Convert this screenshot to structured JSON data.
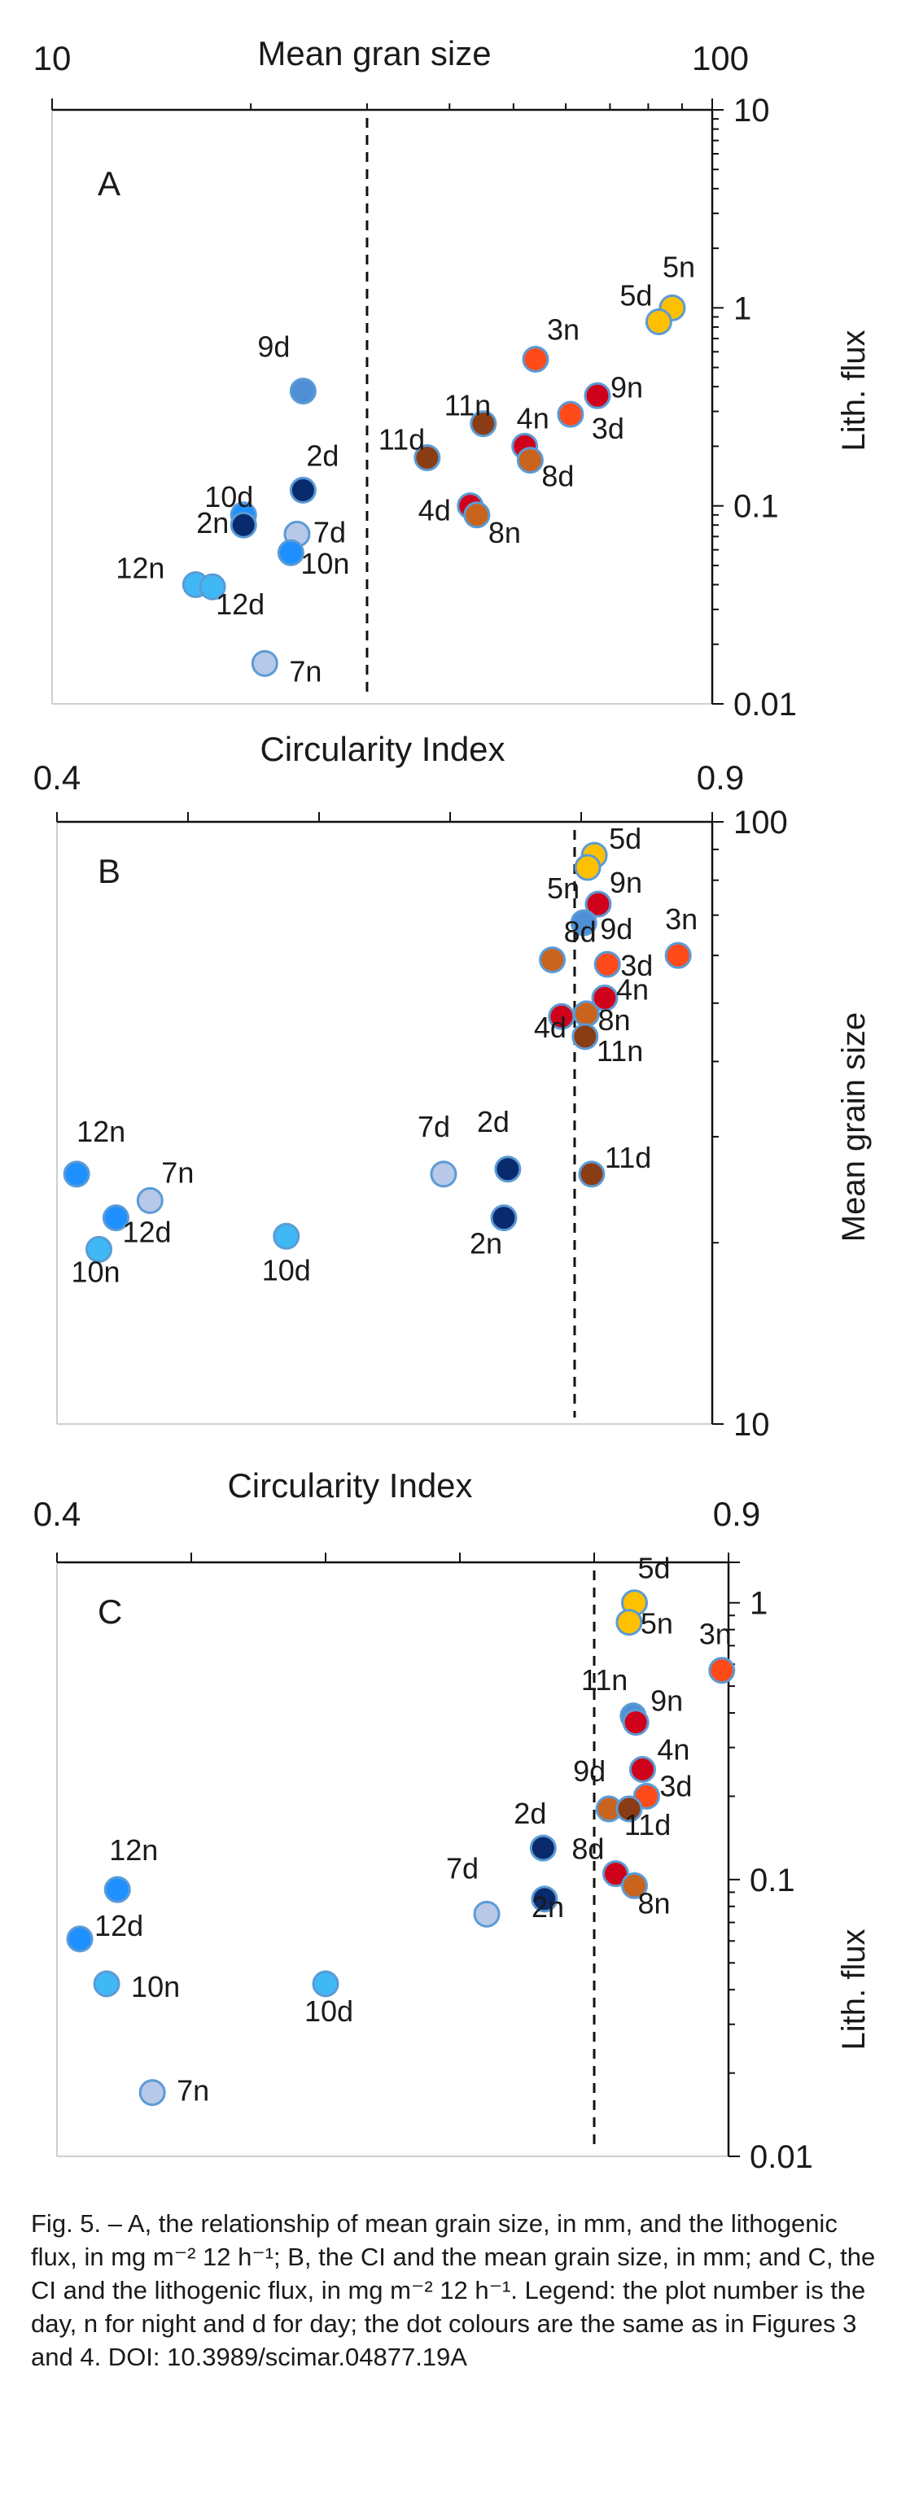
{
  "colors": {
    "light_blue": "#3fb8f5",
    "blue": "#1e90ff",
    "pale_blue": "#b8c8e8",
    "mid_blue": "#4f8fd6",
    "navy": "#0a2a6e",
    "yellow": "#ffc000",
    "red": "#d0021b",
    "orange_red": "#ff4a1a",
    "brown": "#8a3c14",
    "orange_brown": "#c8641e",
    "dot_outline": "#5b9bd5"
  },
  "chart_data": [
    {
      "panel": "A",
      "type": "scatter",
      "xlabel": "Mean gran size",
      "ylabel": "Lith. flux",
      "x_scale": "log",
      "y_scale": "log",
      "xlim": [
        10,
        100
      ],
      "ylim": [
        0.01,
        10
      ],
      "x_tick_labels": [
        {
          "v": 10,
          "t": "10"
        },
        {
          "v": 100,
          "t": "100"
        }
      ],
      "y_tick_labels": [
        {
          "v": 10,
          "t": "10"
        },
        {
          "v": 1,
          "t": "1"
        },
        {
          "v": 0.1,
          "t": "0.1"
        },
        {
          "v": 0.01,
          "t": "0.01"
        }
      ],
      "threshold_x": 30,
      "points": [
        {
          "label": "5n",
          "x": 87,
          "y": 1.0,
          "color": "yellow"
        },
        {
          "label": "5d",
          "x": 83,
          "y": 0.85,
          "color": "yellow"
        },
        {
          "label": "3n",
          "x": 54,
          "y": 0.55,
          "color": "orange_red"
        },
        {
          "label": "9n",
          "x": 67,
          "y": 0.36,
          "color": "red"
        },
        {
          "label": "3d",
          "x": 61,
          "y": 0.29,
          "color": "orange_red"
        },
        {
          "label": "11n",
          "x": 45,
          "y": 0.26,
          "color": "brown"
        },
        {
          "label": "4n",
          "x": 52,
          "y": 0.2,
          "color": "red"
        },
        {
          "label": "8d",
          "x": 53,
          "y": 0.17,
          "color": "orange_brown"
        },
        {
          "label": "11d",
          "x": 37,
          "y": 0.175,
          "color": "brown"
        },
        {
          "label": "4d",
          "x": 43,
          "y": 0.1,
          "color": "red"
        },
        {
          "label": "8n",
          "x": 44,
          "y": 0.09,
          "color": "orange_brown"
        },
        {
          "label": "9d",
          "x": 24,
          "y": 0.38,
          "color": "mid_blue"
        },
        {
          "label": "2d",
          "x": 24,
          "y": 0.12,
          "color": "navy"
        },
        {
          "label": "10d",
          "x": 19.5,
          "y": 0.09,
          "color": "blue"
        },
        {
          "label": "2n",
          "x": 19.5,
          "y": 0.08,
          "color": "navy"
        },
        {
          "label": "7d",
          "x": 23.5,
          "y": 0.072,
          "color": "pale_blue"
        },
        {
          "label": "10n",
          "x": 23,
          "y": 0.058,
          "color": "blue"
        },
        {
          "label": "12n",
          "x": 16.5,
          "y": 0.04,
          "color": "light_blue"
        },
        {
          "label": "12d",
          "x": 17.5,
          "y": 0.039,
          "color": "light_blue"
        },
        {
          "label": "7n",
          "x": 21,
          "y": 0.016,
          "color": "pale_blue"
        }
      ]
    },
    {
      "panel": "B",
      "type": "scatter",
      "xlabel": "Circularity Index",
      "ylabel": "Mean grain size",
      "x_scale": "linear",
      "y_scale": "log",
      "xlim": [
        0.4,
        0.9
      ],
      "ylim": [
        10,
        100
      ],
      "x_tick_labels": [
        {
          "v": 0.4,
          "t": "0.4"
        },
        {
          "v": 0.9,
          "t": "0.9"
        }
      ],
      "y_tick_labels": [
        {
          "v": 100,
          "t": "100"
        },
        {
          "v": 10,
          "t": "10"
        }
      ],
      "threshold_x": 0.795,
      "points": [
        {
          "label": "5d",
          "x": 0.81,
          "y": 88,
          "color": "yellow"
        },
        {
          "label": "5n",
          "x": 0.805,
          "y": 84,
          "color": "yellow"
        },
        {
          "label": "9n",
          "x": 0.813,
          "y": 73,
          "color": "red"
        },
        {
          "label": "9d",
          "x": 0.802,
          "y": 68,
          "color": "mid_blue"
        },
        {
          "label": "3n",
          "x": 0.874,
          "y": 60,
          "color": "orange_red"
        },
        {
          "label": "8d",
          "x": 0.778,
          "y": 59,
          "color": "orange_brown"
        },
        {
          "label": "3d",
          "x": 0.82,
          "y": 58,
          "color": "orange_red"
        },
        {
          "label": "4n",
          "x": 0.818,
          "y": 51,
          "color": "red"
        },
        {
          "label": "8n",
          "x": 0.804,
          "y": 48,
          "color": "orange_brown"
        },
        {
          "label": "4d",
          "x": 0.785,
          "y": 47.5,
          "color": "red"
        },
        {
          "label": "11n",
          "x": 0.803,
          "y": 44,
          "color": "brown"
        },
        {
          "label": "11d",
          "x": 0.808,
          "y": 26,
          "color": "brown"
        },
        {
          "label": "2d",
          "x": 0.744,
          "y": 26.5,
          "color": "navy"
        },
        {
          "label": "7d",
          "x": 0.695,
          "y": 26,
          "color": "pale_blue"
        },
        {
          "label": "2n",
          "x": 0.741,
          "y": 22,
          "color": "navy"
        },
        {
          "label": "12n",
          "x": 0.415,
          "y": 26,
          "color": "blue"
        },
        {
          "label": "7n",
          "x": 0.471,
          "y": 23.5,
          "color": "pale_blue"
        },
        {
          "label": "12d",
          "x": 0.445,
          "y": 22,
          "color": "blue"
        },
        {
          "label": "10n",
          "x": 0.432,
          "y": 19.5,
          "color": "light_blue"
        },
        {
          "label": "10d",
          "x": 0.575,
          "y": 20.5,
          "color": "light_blue"
        }
      ]
    },
    {
      "panel": "C",
      "type": "scatter",
      "xlabel": "Circularity Index",
      "ylabel": "Lith. flux",
      "x_scale": "linear",
      "y_scale": "log",
      "xlim": [
        0.4,
        0.9
      ],
      "ylim": [
        0.01,
        1.4
      ],
      "x_tick_labels": [
        {
          "v": 0.4,
          "t": "0.4"
        },
        {
          "v": 0.9,
          "t": "0.9"
        }
      ],
      "y_tick_labels": [
        {
          "v": 1,
          "t": "1"
        },
        {
          "v": 0.1,
          "t": "0.1"
        },
        {
          "v": 0.01,
          "t": "0.01"
        }
      ],
      "threshold_x": 0.8,
      "points": [
        {
          "label": "5d",
          "x": 0.83,
          "y": 1.0,
          "color": "yellow"
        },
        {
          "label": "5n",
          "x": 0.826,
          "y": 0.85,
          "color": "yellow"
        },
        {
          "label": "3n",
          "x": 0.895,
          "y": 0.57,
          "color": "orange_red"
        },
        {
          "label": "11n",
          "x": 0.829,
          "y": 0.39,
          "color": "mid_blue"
        },
        {
          "label": "9n",
          "x": 0.831,
          "y": 0.37,
          "color": "red"
        },
        {
          "label": "4n",
          "x": 0.836,
          "y": 0.25,
          "color": "red"
        },
        {
          "label": "3d",
          "x": 0.839,
          "y": 0.2,
          "color": "orange_red"
        },
        {
          "label": "9d",
          "x": 0.811,
          "y": 0.18,
          "color": "orange_brown"
        },
        {
          "label": "11d",
          "x": 0.826,
          "y": 0.18,
          "color": "brown"
        },
        {
          "label": "8d",
          "x": 0.816,
          "y": 0.105,
          "color": "red"
        },
        {
          "label": "8n",
          "x": 0.83,
          "y": 0.095,
          "color": "orange_brown"
        },
        {
          "label": "2d",
          "x": 0.762,
          "y": 0.13,
          "color": "navy"
        },
        {
          "label": "2n",
          "x": 0.763,
          "y": 0.085,
          "color": "navy"
        },
        {
          "label": "7d",
          "x": 0.72,
          "y": 0.075,
          "color": "pale_blue"
        },
        {
          "label": "12n",
          "x": 0.445,
          "y": 0.092,
          "color": "blue"
        },
        {
          "label": "12d",
          "x": 0.417,
          "y": 0.061,
          "color": "blue"
        },
        {
          "label": "10n",
          "x": 0.437,
          "y": 0.042,
          "color": "light_blue"
        },
        {
          "label": "10d",
          "x": 0.6,
          "y": 0.042,
          "color": "light_blue"
        },
        {
          "label": "7n",
          "x": 0.471,
          "y": 0.017,
          "color": "pale_blue"
        }
      ]
    }
  ],
  "caption": "Fig. 5. – A, the relationship of mean grain size, in mm, and the lithogenic flux, in mg m⁻² 12 h⁻¹; B, the CI and the mean grain size, in mm; and C, the CI and the lithogenic flux, in mg m⁻² 12 h⁻¹. Legend: the plot number is the day, n for night and d for day; the dot colours are the same as in Figures 3 and 4. DOI: 10.3989/scimar.04877.19A"
}
